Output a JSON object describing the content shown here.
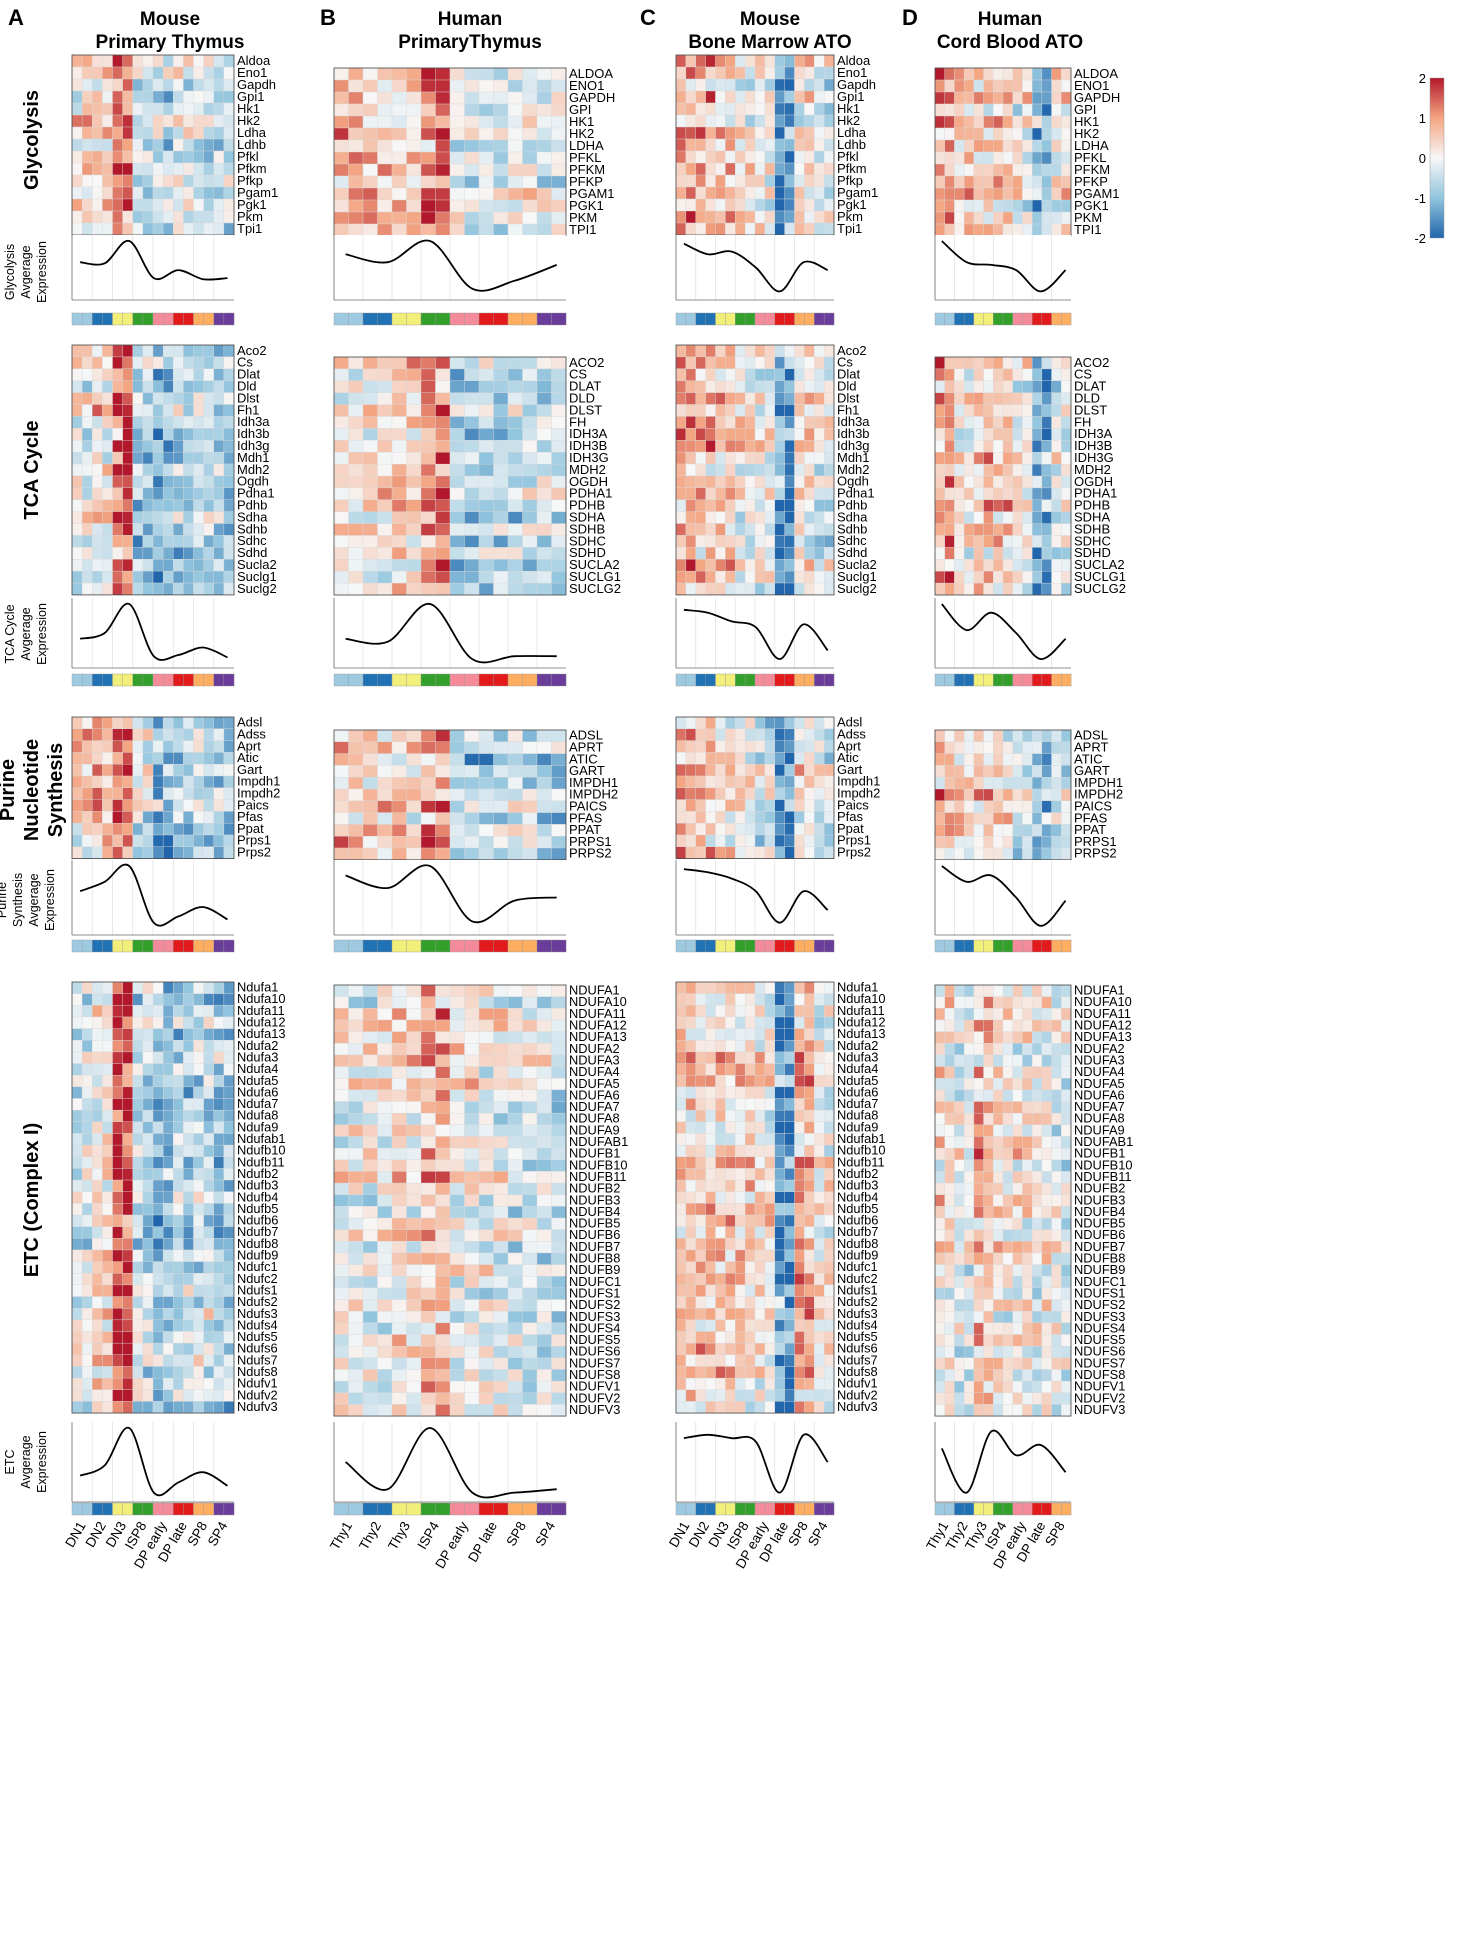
{
  "figure": {
    "panels": [
      {
        "letter": "A",
        "title_line1": "Mouse",
        "title_line2": "Primary Thymus"
      },
      {
        "letter": "B",
        "title_line1": "Human",
        "title_line2": "PrimaryThymus"
      },
      {
        "letter": "C",
        "title_line1": "Mouse",
        "title_line2": "Bone Marrow ATO"
      },
      {
        "letter": "D",
        "title_line1": "Human",
        "title_line2": "Cord Blood ATO"
      }
    ],
    "sections": [
      {
        "label_lines": [
          "Glycolysis"
        ],
        "curve_label_lines": [
          "Glycolysis",
          "Avgerage",
          "Expression"
        ]
      },
      {
        "label_lines": [
          "TCA Cycle"
        ],
        "curve_label_lines": [
          "TCA Cycle",
          "Avgerage",
          "Expression"
        ]
      },
      {
        "label_lines": [
          "Purine",
          "Nucleotide",
          "Synthesis"
        ],
        "curve_label_lines": [
          "Purine",
          "Synthesis",
          "Avgerage",
          "Expression"
        ]
      },
      {
        "label_lines": [
          "ETC (Complex I)"
        ],
        "curve_label_lines": [
          "ETC",
          "Avgerage",
          "Expression"
        ]
      }
    ],
    "colorbar": {
      "ticks": [
        "2",
        "1",
        "0",
        "-1",
        "-2"
      ],
      "min": -2,
      "max": 2
    }
  },
  "chart_data": [
    {
      "type": "heatmap",
      "panel": "A",
      "stage_labels": [
        "DN1",
        "DN2",
        "DN3",
        "ISP8",
        "DP early",
        "DP late",
        "SP8",
        "SP4"
      ],
      "stage_colors": [
        "#9ecae1",
        "#2171b5",
        "#f2ee7a",
        "#33a02c",
        "#f48b9a",
        "#e31a1c",
        "#fdae61",
        "#6a3d9a"
      ],
      "genes": {
        "glycolysis": [
          "Aldoa",
          "Eno1",
          "Gapdh",
          "Gpi1",
          "Hk1",
          "Hk2",
          "Ldha",
          "Ldhb",
          "Pfkl",
          "Pfkm",
          "Pfkp",
          "Pgam1",
          "Pgk1",
          "Pkm",
          "Tpi1"
        ],
        "tca": [
          "Aco2",
          "Cs",
          "Dlat",
          "Dld",
          "Dlst",
          "Fh1",
          "Idh3a",
          "Idh3b",
          "Idh3g",
          "Mdh1",
          "Mdh2",
          "Ogdh",
          "Pdha1",
          "Pdhb",
          "Sdha",
          "Sdhb",
          "Sdhc",
          "Sdhd",
          "Sucla2",
          "Suclg1",
          "Suclg2"
        ],
        "purine": [
          "Adsl",
          "Adss",
          "Aprt",
          "Atic",
          "Gart",
          "Impdh1",
          "Impdh2",
          "Paics",
          "Pfas",
          "Ppat",
          "Prps1",
          "Prps2"
        ],
        "etc": [
          "Ndufa1",
          "Ndufa10",
          "Ndufa11",
          "Ndufa12",
          "Ndufa13",
          "Ndufa2",
          "Ndufa3",
          "Ndufa4",
          "Ndufa5",
          "Ndufa6",
          "Ndufa7",
          "Ndufa8",
          "Ndufa9",
          "Ndufab1",
          "Ndufb10",
          "Ndufb11",
          "Ndufb2",
          "Ndufb3",
          "Ndufb4",
          "Ndufb5",
          "Ndufb6",
          "Ndufb7",
          "Ndufb8",
          "Ndufb9",
          "Ndufc1",
          "Ndufc2",
          "Ndufs1",
          "Ndufs2",
          "Ndufs3",
          "Ndufs4",
          "Ndufs5",
          "Ndufs6",
          "Ndufs7",
          "Ndufs8",
          "Ndufv1",
          "Ndufv2",
          "Ndufv3"
        ]
      },
      "profiles": {
        "glycolysis": [
          0.35,
          0.6,
          1.7,
          -0.4,
          -0.6,
          -0.1,
          -0.3,
          -0.4
        ],
        "tca": [
          0.0,
          0.3,
          1.9,
          -0.8,
          -1.0,
          -0.7,
          -0.5,
          -0.9
        ],
        "purine": [
          0.4,
          0.8,
          1.6,
          -0.4,
          -1.3,
          -0.9,
          -0.6,
          -0.9
        ],
        "etc": [
          -0.3,
          0.3,
          1.9,
          -0.5,
          -1.0,
          -0.7,
          -0.5,
          -0.9
        ]
      },
      "curves": {
        "glycolysis": [
          0.6,
          0.58,
          1.0,
          0.3,
          0.45,
          0.28,
          0.3
        ],
        "tca": [
          0.4,
          0.5,
          1.0,
          0.1,
          0.12,
          0.25,
          0.08
        ],
        "purine": [
          0.6,
          0.75,
          1.0,
          0.1,
          0.2,
          0.35,
          0.15
        ],
        "etc": [
          0.3,
          0.45,
          1.0,
          0.05,
          0.2,
          0.35,
          0.15
        ]
      }
    },
    {
      "type": "heatmap",
      "panel": "B",
      "stage_labels": [
        "Thy1",
        "Thy2",
        "Thy3",
        "ISP4",
        "DP early",
        "DP late",
        "SP8",
        "SP4"
      ],
      "stage_colors": [
        "#9ecae1",
        "#2171b5",
        "#f2ee7a",
        "#33a02c",
        "#f48b9a",
        "#e31a1c",
        "#fdae61",
        "#6a3d9a"
      ],
      "genes": {
        "glycolysis": [
          "ALDOA",
          "ENO1",
          "GAPDH",
          "GPI",
          "HK1",
          "HK2",
          "LDHA",
          "PFKL",
          "PFKM",
          "PFKP",
          "PGAM1",
          "PGK1",
          "PKM",
          "TPI1"
        ],
        "tca": [
          "ACO2",
          "CS",
          "DLAT",
          "DLD",
          "DLST",
          "FH",
          "IDH3A",
          "IDH3B",
          "IDH3G",
          "MDH2",
          "OGDH",
          "PDHA1",
          "PDHB",
          "SDHA",
          "SDHB",
          "SDHC",
          "SDHD",
          "SUCLA2",
          "SUCLG1",
          "SUCLG2"
        ],
        "purine": [
          "ADSL",
          "APRT",
          "ATIC",
          "GART",
          "IMPDH1",
          "IMPDH2",
          "PAICS",
          "PFAS",
          "PPAT",
          "PRPS1",
          "PRPS2"
        ],
        "etc": [
          "NDUFA1",
          "NDUFA10",
          "NDUFA11",
          "NDUFA12",
          "NDUFA13",
          "NDUFA2",
          "NDUFA3",
          "NDUFA4",
          "NDUFA5",
          "NDUFA6",
          "NDUFA7",
          "NDUFA8",
          "NDUFA9",
          "NDUFAB1",
          "NDUFB1",
          "NDUFB10",
          "NDUFB11",
          "NDUFB2",
          "NDUFB3",
          "NDUFB4",
          "NDUFB5",
          "NDUFB6",
          "NDUFB7",
          "NDUFB8",
          "NDUFB9",
          "NDUFC1",
          "NDUFS1",
          "NDUFS2",
          "NDUFS3",
          "NDUFS4",
          "NDUFS5",
          "NDUFS6",
          "NDUFS7",
          "NDUFS8",
          "NDUFV1",
          "NDUFV2",
          "NDUFV3"
        ]
      },
      "profiles": {
        "glycolysis": [
          0.6,
          0.4,
          0.3,
          1.3,
          -0.4,
          -0.7,
          -0.3,
          -0.2
        ],
        "tca": [
          0.2,
          0.2,
          0.6,
          1.4,
          -0.6,
          -0.6,
          -0.5,
          -0.4
        ],
        "purine": [
          0.7,
          0.6,
          0.5,
          1.2,
          -0.7,
          -0.9,
          -0.3,
          -0.5
        ],
        "etc": [
          0.1,
          0.0,
          0.4,
          0.8,
          0.1,
          0.0,
          -0.2,
          -0.3
        ]
      },
      "curves": {
        "glycolysis": [
          0.75,
          0.6,
          1.0,
          0.1,
          0.25,
          0.55
        ],
        "tca": [
          0.4,
          0.35,
          1.0,
          0.05,
          0.1,
          0.1
        ],
        "purine": [
          0.85,
          0.65,
          1.0,
          0.12,
          0.45,
          0.5
        ],
        "etc": [
          0.5,
          0.1,
          1.0,
          0.05,
          0.05,
          0.1
        ]
      }
    },
    {
      "type": "heatmap",
      "panel": "C",
      "stage_labels": [
        "DN1",
        "DN2",
        "DN3",
        "ISP8",
        "DP early",
        "DP late",
        "SP8",
        "SP4"
      ],
      "stage_colors": [
        "#9ecae1",
        "#2171b5",
        "#f2ee7a",
        "#33a02c",
        "#f48b9a",
        "#e31a1c",
        "#fdae61",
        "#6a3d9a"
      ],
      "genes": {
        "glycolysis": [
          "Aldoa",
          "Eno1",
          "Gapdh",
          "Gpi1",
          "Hk1",
          "Hk2",
          "Ldha",
          "Ldhb",
          "Pfkl",
          "Pfkm",
          "Pfkp",
          "Pgam1",
          "Pgk1",
          "Pkm",
          "Tpi1"
        ],
        "tca": [
          "Aco2",
          "Cs",
          "Dlat",
          "Dld",
          "Dlst",
          "Fh1",
          "Idh3a",
          "Idh3b",
          "Idh3g",
          "Mdh1",
          "Mdh2",
          "Ogdh",
          "Pdha1",
          "Pdhb",
          "Sdha",
          "Sdhb",
          "Sdhc",
          "Sdhd",
          "Sucla2",
          "Suclg1",
          "Suclg2"
        ],
        "purine": [
          "Adsl",
          "Adss",
          "Aprt",
          "Atic",
          "Gart",
          "Impdh1",
          "Impdh2",
          "Paics",
          "Pfas",
          "Ppat",
          "Prps1",
          "Prps2"
        ],
        "etc": [
          "Ndufa1",
          "Ndufa10",
          "Ndufa11",
          "Ndufa12",
          "Ndufa13",
          "Ndufa2",
          "Ndufa3",
          "Ndufa4",
          "Ndufa5",
          "Ndufa6",
          "Ndufa7",
          "Ndufa8",
          "Ndufa9",
          "Ndufab1",
          "Ndufb10",
          "Ndufb11",
          "Ndufb2",
          "Ndufb3",
          "Ndufb4",
          "Ndufb5",
          "Ndufb6",
          "Ndufb7",
          "Ndufb8",
          "Ndufb9",
          "Ndufc1",
          "Ndufc2",
          "Ndufs1",
          "Ndufs2",
          "Ndufs3",
          "Ndufs4",
          "Ndufs5",
          "Ndufs6",
          "Ndufs7",
          "Ndufs8",
          "Ndufv1",
          "Ndufv2",
          "Ndufv3"
        ]
      },
      "profiles": {
        "glycolysis": [
          1.0,
          0.8,
          0.6,
          0.2,
          0.1,
          -1.6,
          0.2,
          -0.2
        ],
        "tca": [
          1.0,
          0.8,
          0.6,
          0.1,
          0.0,
          -1.7,
          0.3,
          -0.3
        ],
        "purine": [
          0.9,
          0.9,
          0.5,
          0.2,
          -0.3,
          -1.7,
          0.4,
          -0.3
        ],
        "etc": [
          0.6,
          0.5,
          0.5,
          0.4,
          0.2,
          -1.8,
          0.9,
          0.1
        ]
      },
      "curves": {
        "glycolysis": [
          0.95,
          0.75,
          0.8,
          0.5,
          0.05,
          0.6,
          0.45
        ],
        "tca": [
          0.9,
          0.85,
          0.7,
          0.6,
          0.05,
          0.65,
          0.2
        ],
        "purine": [
          0.95,
          0.9,
          0.8,
          0.6,
          0.1,
          0.6,
          0.3
        ],
        "etc": [
          0.85,
          0.9,
          0.85,
          0.8,
          0.05,
          0.9,
          0.5
        ]
      }
    },
    {
      "type": "heatmap",
      "panel": "D",
      "stage_labels": [
        "Thy1",
        "Thy2",
        "Thy3",
        "ISP4",
        "DP early",
        "DP late",
        "SP8"
      ],
      "stage_colors": [
        "#9ecae1",
        "#2171b5",
        "#f2ee7a",
        "#33a02c",
        "#f48b9a",
        "#e31a1c",
        "#fdae61"
      ],
      "genes": {
        "glycolysis": [
          "ALDOA",
          "ENO1",
          "GAPDH",
          "GPI",
          "HK1",
          "HK2",
          "LDHA",
          "PFKL",
          "PFKM",
          "PFKP",
          "PGAM1",
          "PGK1",
          "PKM",
          "TPI1"
        ],
        "tca": [
          "ACO2",
          "CS",
          "DLAT",
          "DLD",
          "DLST",
          "FH",
          "IDH3A",
          "IDH3B",
          "IDH3G",
          "MDH2",
          "OGDH",
          "PDHA1",
          "PDHB",
          "SDHA",
          "SDHB",
          "SDHC",
          "SDHD",
          "SUCLA2",
          "SUCLG1",
          "SUCLG2"
        ],
        "purine": [
          "ADSL",
          "APRT",
          "ATIC",
          "GART",
          "IMPDH1",
          "IMPDH2",
          "PAICS",
          "PFAS",
          "PPAT",
          "PRPS1",
          "PRPS2"
        ],
        "etc": [
          "NDUFA1",
          "NDUFA10",
          "NDUFA11",
          "NDUFA12",
          "NDUFA13",
          "NDUFA2",
          "NDUFA3",
          "NDUFA4",
          "NDUFA5",
          "NDUFA6",
          "NDUFA7",
          "NDUFA8",
          "NDUFA9",
          "NDUFAB1",
          "NDUFB1",
          "NDUFB10",
          "NDUFB11",
          "NDUFB2",
          "NDUFB3",
          "NDUFB4",
          "NDUFB5",
          "NDUFB6",
          "NDUFB7",
          "NDUFB8",
          "NDUFB9",
          "NDUFC1",
          "NDUFS1",
          "NDUFS2",
          "NDUFS3",
          "NDUFS4",
          "NDUFS5",
          "NDUFS6",
          "NDUFS7",
          "NDUFS8",
          "NDUFV1",
          "NDUFV2",
          "NDUFV3"
        ]
      },
      "profiles": {
        "glycolysis": [
          1.1,
          0.5,
          0.5,
          0.3,
          0.0,
          -1.2,
          0.1
        ],
        "tca": [
          1.0,
          0.3,
          0.6,
          0.5,
          0.0,
          -1.3,
          -0.2
        ],
        "purine": [
          1.0,
          0.7,
          0.6,
          0.3,
          -0.2,
          -1.0,
          -0.4
        ],
        "etc": [
          0.3,
          -0.3,
          0.7,
          0.1,
          0.2,
          0.0,
          -0.2
        ]
      },
      "curves": {
        "glycolysis": [
          1.0,
          0.6,
          0.55,
          0.45,
          0.05,
          0.45
        ],
        "tca": [
          1.0,
          0.55,
          0.85,
          0.5,
          0.05,
          0.4
        ],
        "purine": [
          1.0,
          0.75,
          0.85,
          0.5,
          0.05,
          0.45
        ],
        "etc": [
          0.7,
          0.05,
          0.95,
          0.6,
          0.75,
          0.35
        ]
      }
    }
  ]
}
